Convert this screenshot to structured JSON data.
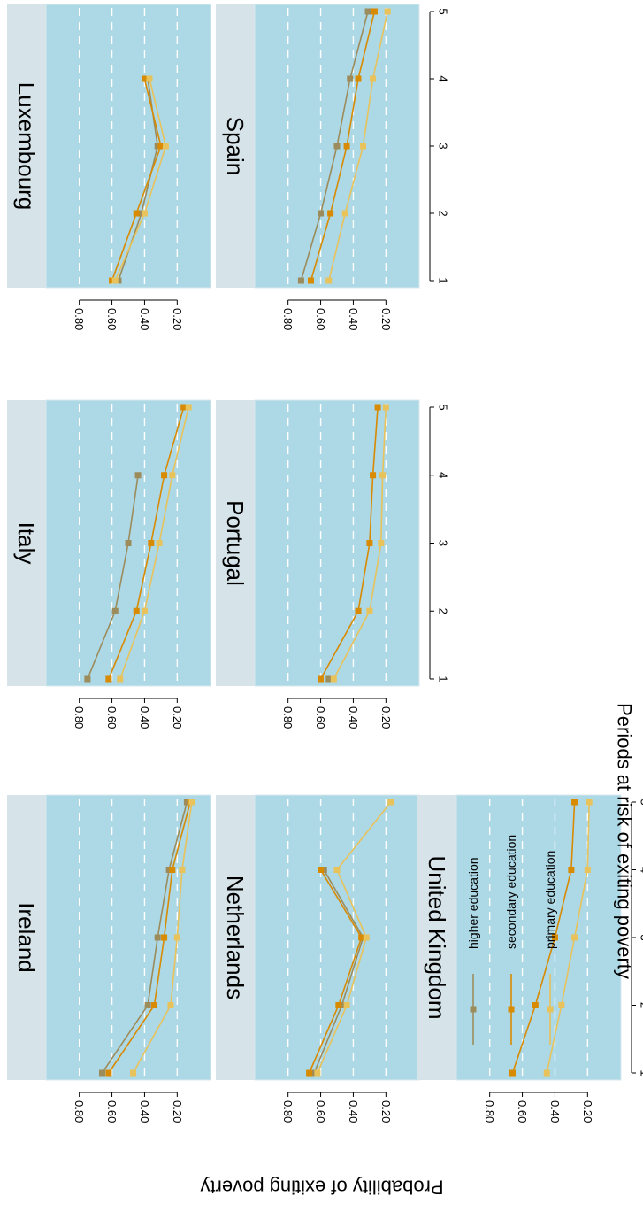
{
  "chart_data": {
    "type": "line",
    "title": "",
    "xlabel": "Periods at risk of exiting poverty",
    "ylabel": "Probability of exiting poverty",
    "x": [
      1,
      2,
      3,
      4,
      5
    ],
    "x_ticks": [
      "1",
      "2",
      "3",
      "4",
      "5"
    ],
    "y_ticks": [
      "0.80",
      "0.60",
      "0.40",
      "0.20"
    ],
    "ylim": [
      0.05,
      0.95
    ],
    "grid": true,
    "panel_background": "#add8e6",
    "strip_background": "#d6e4ea",
    "orientation": "figure rotated 90 degrees clockwise",
    "series_styles": [
      {
        "name": "higher education",
        "color": "#9c8c5c"
      },
      {
        "name": "secondary education",
        "color": "#d88a00"
      },
      {
        "name": "primary education",
        "color": "#e8c25a"
      }
    ],
    "legend": {
      "position": "bottom-right",
      "items": [
        "higher education",
        "secondary education",
        "primary education"
      ]
    },
    "panels": [
      {
        "country": "Luxembourg",
        "series": [
          {
            "name": "higher education",
            "values": [
              0.56,
              0.42,
              0.32,
              0.38,
              null
            ]
          },
          {
            "name": "secondary education",
            "values": [
              0.6,
              0.45,
              0.3,
              0.4,
              null
            ]
          },
          {
            "name": "primary education",
            "values": [
              0.58,
              0.4,
              0.27,
              0.37,
              null
            ]
          }
        ]
      },
      {
        "country": "Spain",
        "series": [
          {
            "name": "higher education",
            "values": [
              0.72,
              0.6,
              0.5,
              0.42,
              0.31
            ]
          },
          {
            "name": "secondary education",
            "values": [
              0.66,
              0.54,
              0.44,
              0.37,
              0.27
            ]
          },
          {
            "name": "primary education",
            "values": [
              0.55,
              0.45,
              0.34,
              0.28,
              0.19
            ]
          }
        ]
      },
      {
        "country": "Italy",
        "series": [
          {
            "name": "higher education",
            "values": [
              0.75,
              0.58,
              0.5,
              0.44,
              null
            ]
          },
          {
            "name": "secondary education",
            "values": [
              0.62,
              0.45,
              0.36,
              0.28,
              0.16
            ]
          },
          {
            "name": "primary education",
            "values": [
              0.55,
              0.4,
              0.31,
              0.23,
              0.13
            ]
          }
        ]
      },
      {
        "country": "Portugal",
        "series": [
          {
            "name": "higher education",
            "values": [
              0.55,
              null,
              null,
              null,
              null
            ]
          },
          {
            "name": "secondary education",
            "values": [
              0.6,
              0.37,
              0.3,
              0.28,
              0.25
            ]
          },
          {
            "name": "primary education",
            "values": [
              0.52,
              0.3,
              0.23,
              0.22,
              0.2
            ]
          }
        ]
      },
      {
        "country": "Ireland",
        "series": [
          {
            "name": "higher education",
            "values": [
              0.66,
              0.38,
              0.32,
              0.25,
              0.14
            ]
          },
          {
            "name": "secondary education",
            "values": [
              0.62,
              0.34,
              0.28,
              0.23,
              0.12
            ]
          },
          {
            "name": "primary education",
            "values": [
              0.47,
              0.24,
              0.2,
              0.17,
              0.11
            ]
          }
        ]
      },
      {
        "country": "Netherlands",
        "series": [
          {
            "name": "higher education",
            "values": [
              0.64,
              0.47,
              0.34,
              0.58,
              null
            ]
          },
          {
            "name": "secondary education",
            "values": [
              0.67,
              0.49,
              0.35,
              0.6,
              null
            ]
          },
          {
            "name": "primary education",
            "values": [
              0.62,
              0.44,
              0.32,
              0.5,
              0.17
            ]
          }
        ]
      },
      {
        "country": "United Kingdom",
        "series": [
          {
            "name": "secondary education",
            "values": [
              0.66,
              0.52,
              0.4,
              0.3,
              0.28
            ]
          },
          {
            "name": "primary education",
            "values": [
              0.45,
              0.36,
              0.28,
              0.2,
              0.19
            ]
          }
        ]
      }
    ]
  }
}
